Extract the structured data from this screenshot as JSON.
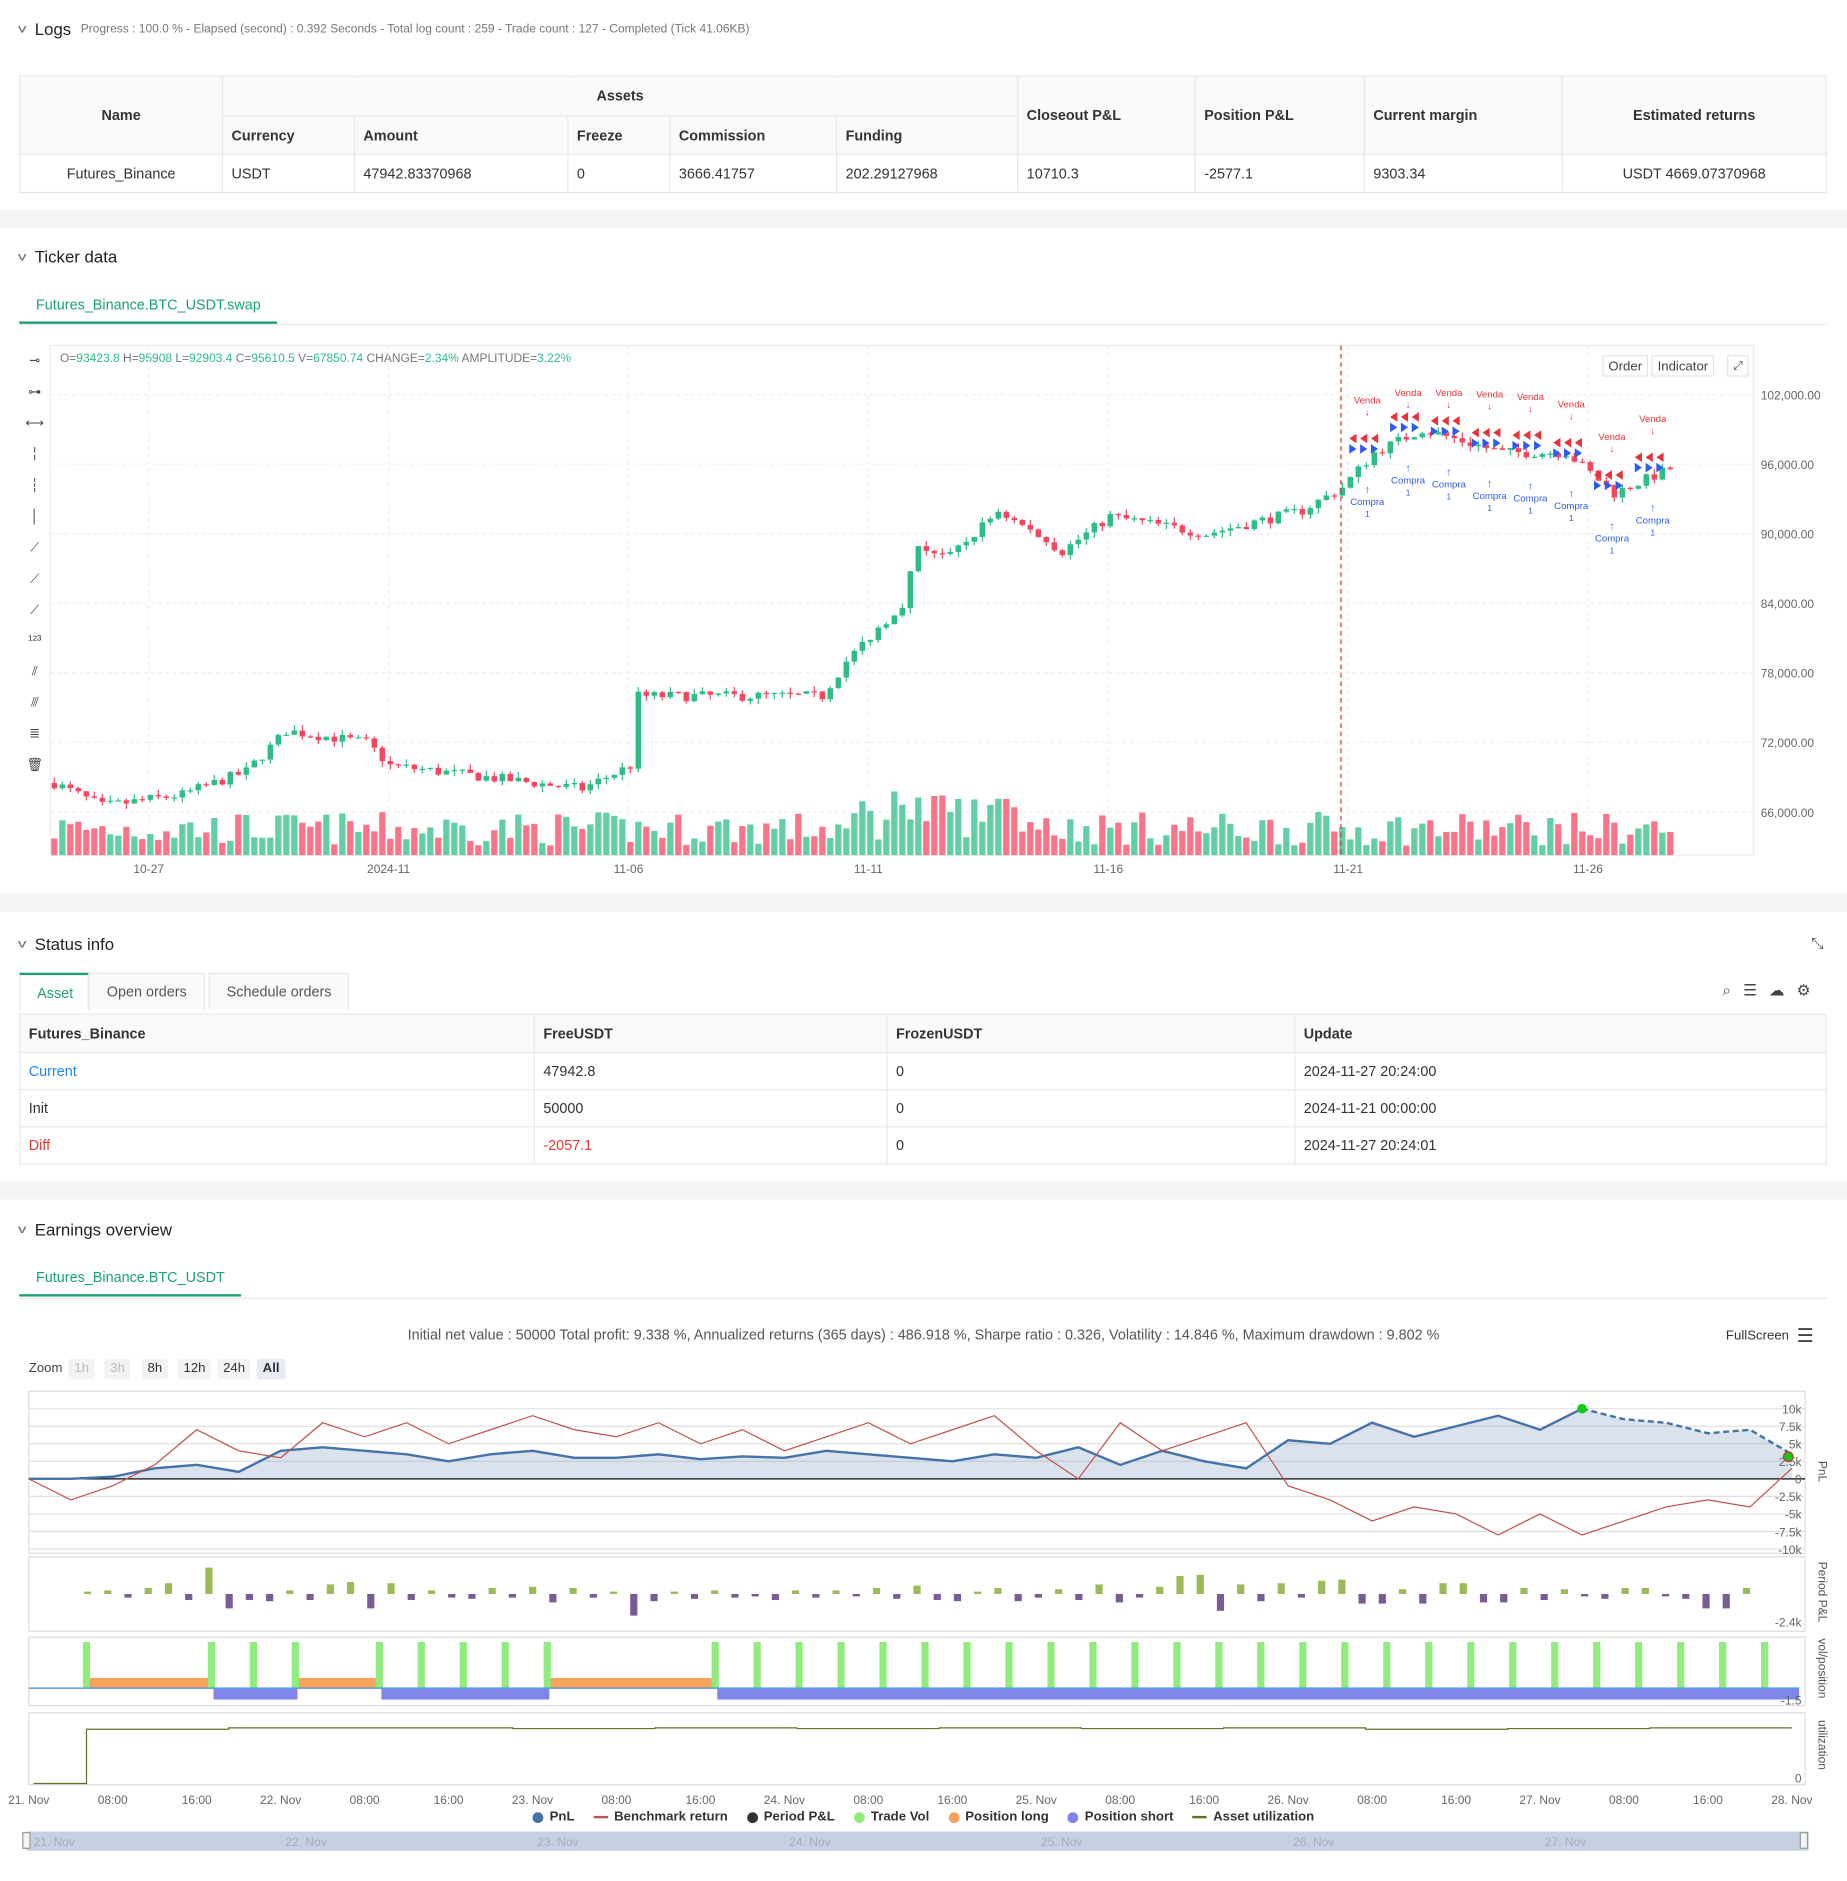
{
  "logs": {
    "title": "Logs",
    "summary": "Progress : 100.0 % - Elapsed (second) : 0.392  Seconds - Total log count : 259 - Trade count : 127 - Completed (Tick 41.06KB)",
    "headers": {
      "name": "Name",
      "assets": "Assets",
      "currency": "Currency",
      "amount": "Amount",
      "freeze": "Freeze",
      "commission": "Commission",
      "funding": "Funding",
      "closeout": "Closeout P&L",
      "position": "Position P&L",
      "margin": "Current margin",
      "returns": "Estimated returns"
    },
    "row": {
      "name": "Futures_Binance",
      "currency": "USDT",
      "amount": "47942.83370968",
      "freeze": "0",
      "commission": "3666.41757",
      "funding": "202.29127968",
      "closeout": "10710.3",
      "position": "-2577.1",
      "margin": "9303.34",
      "returns": "USDT 4669.07370968"
    }
  },
  "ticker": {
    "title": "Ticker data",
    "tab": "Futures_Binance.BTC_USDT.swap",
    "ohlc": {
      "o_label": "O=",
      "o": "93423.8",
      "h_label": " H=",
      "h": "95908",
      "l_label": " L=",
      "l": "92903.4",
      "c_label": " C=",
      "c": "95610.5",
      "v_label": " V=",
      "v": "67850.74",
      "chg_label": " CHANGE=",
      "chg": "2.34%",
      "amp_label": " AMPLITUDE=",
      "amp": "3.22%"
    },
    "order_btn": "Order",
    "indicator_btn": "Indicator",
    "buy_label": "Compra",
    "sell_label": "Venda",
    "qty_label": "1"
  },
  "status": {
    "title": "Status info",
    "tabs": [
      "Asset",
      "Open orders",
      "Schedule orders"
    ],
    "headers": [
      "Futures_Binance",
      "FreeUSDT",
      "FrozenUSDT",
      "Update"
    ],
    "rows": [
      [
        "Current",
        "47942.8",
        "0",
        "2024-11-27 20:24:00"
      ],
      [
        "Init",
        "50000",
        "0",
        "2024-11-21 00:00:00"
      ],
      [
        "Diff",
        "-2057.1",
        "0",
        "2024-11-27 20:24:01"
      ]
    ]
  },
  "earnings": {
    "title": "Earnings overview",
    "tab": "Futures_Binance.BTC_USDT",
    "summary": "Initial net value : 50000 Total profit: 9.338 %, Annualized returns (365 days) : 486.918 %, Sharpe ratio : 0.326, Volatility : 14.846 %, Maximum drawdown : 9.802 %",
    "fullscreen": "FullScreen",
    "zoom_label": "Zoom",
    "zoom_opts": [
      "1h",
      "3h",
      "8h",
      "12h",
      "24h",
      "All"
    ],
    "axis_titles": [
      "PnL",
      "Period P&L",
      "vol/position",
      "utilization"
    ],
    "legend": [
      "PnL",
      "Benchmark return",
      "Period P&L",
      "Trade Vol",
      "Position long",
      "Position short",
      "Asset utilization"
    ],
    "navigator_labels": [
      "21. Nov",
      "22. Nov",
      "23. Nov",
      "24. Nov",
      "25. Nov",
      "26. Nov",
      "27. Nov"
    ]
  },
  "colors": {
    "up": "#2ebd85",
    "down": "#f6465d",
    "accent": "#1aa36f",
    "pnl": "#4572a7",
    "bench": "#c0504d",
    "pos": "#9bbb59",
    "neg": "#7a5c94",
    "vol": "#90ed7d",
    "long": "#f7a35c",
    "short": "#8085e9",
    "util": "#6b6b2a",
    "buy": "#2f5bea",
    "sell": "#e8323c"
  },
  "chart_data": [
    {
      "type": "candlestick",
      "title": "Futures_Binance.BTC_USDT.swap",
      "candle_count": 203,
      "price_anchors": [
        [
          0,
          68500
        ],
        [
          6,
          66500
        ],
        [
          16,
          67500
        ],
        [
          24,
          69500
        ],
        [
          29,
          73000
        ],
        [
          39,
          72000
        ],
        [
          42,
          70000
        ],
        [
          54,
          69000
        ],
        [
          66,
          68000
        ],
        [
          72,
          70000
        ],
        [
          73,
          76000
        ],
        [
          78,
          76000
        ],
        [
          96,
          76000
        ],
        [
          99,
          79000
        ],
        [
          106,
          84000
        ],
        [
          108,
          89000
        ],
        [
          112,
          88000
        ],
        [
          118,
          92000
        ],
        [
          126,
          88500
        ],
        [
          132,
          91500
        ],
        [
          144,
          90000
        ],
        [
          156,
          92000
        ],
        [
          161,
          94000
        ],
        [
          165,
          97000
        ],
        [
          171,
          99000
        ],
        [
          181,
          97000
        ],
        [
          189,
          97000
        ],
        [
          195,
          93500
        ],
        [
          202,
          95610
        ]
      ],
      "y_ticks": [
        66000,
        72000,
        78000,
        84000,
        90000,
        96000,
        102000
      ],
      "y_tick_labels": [
        "66,000.00",
        "72,000.00",
        "78,000.00",
        "84,000.00",
        "90,000.00",
        "96,000.00",
        "102,000.00"
      ],
      "x_tick_labels": [
        "10-27",
        "2024-11",
        "11-06",
        "11-11",
        "11-16",
        "11-21",
        "11-26"
      ]
    },
    {
      "type": "line",
      "title": "PnL",
      "x_step_hours": 4,
      "pnl_k": [
        0,
        0,
        0.3,
        1.5,
        2,
        1,
        4,
        4.5,
        4,
        3.5,
        2.5,
        3.5,
        4,
        3,
        3,
        3.5,
        2.8,
        3.2,
        3,
        4,
        3.5,
        3,
        2.5,
        3.5,
        3,
        4.5,
        2,
        4,
        2.5,
        1.5,
        5.5,
        5,
        8,
        6,
        7.5,
        9,
        7,
        10,
        8.5,
        8,
        6.5,
        7,
        3.5
      ],
      "dashed_from_index": 37,
      "benchmark_k": [
        0,
        -3,
        -1,
        2,
        7,
        4,
        3,
        8,
        6,
        8,
        5,
        7,
        9,
        7,
        6,
        8,
        5,
        7,
        4,
        6,
        8,
        5,
        7,
        9,
        4,
        0,
        8,
        4,
        6,
        8,
        -1,
        -3,
        -6,
        -4,
        -5,
        -8,
        -5,
        -8,
        -6,
        -4,
        -3,
        -4,
        1.5
      ],
      "y_ticks": [
        "10k",
        "7.5k",
        "5k",
        "2.5k",
        "0",
        "-2.5k",
        "-5k",
        "-7.5k",
        "-10k"
      ],
      "ylim": [
        -10,
        10
      ]
    },
    {
      "type": "bar",
      "title": "Period P&L",
      "values_k": [
        0.2,
        0.3,
        -0.3,
        0.5,
        0.9,
        -0.5,
        2.2,
        -1.2,
        -0.5,
        -0.6,
        0.3,
        -0.5,
        0.8,
        1,
        -1.2,
        0.9,
        -0.5,
        0.3,
        -0.3,
        -0.4,
        0.5,
        -0.3,
        0.6,
        -0.7,
        0.5,
        -0.3,
        0.2,
        -1.8,
        -0.6,
        0.2,
        -0.4,
        0.3,
        -0.3,
        -0.2,
        -0.5,
        0.3,
        -0.3,
        0.3,
        -0.2,
        0.5,
        -0.4,
        0.7,
        -0.5,
        -0.6,
        0.2,
        0.5,
        -0.6,
        -0.3,
        0.4,
        -0.5,
        0.8,
        -0.7,
        -0.3,
        0.6,
        1.5,
        1.6,
        -1.4,
        0.8,
        -0.6,
        0.9,
        -0.3,
        1.1,
        1.2,
        -0.8,
        -0.8,
        0.4,
        -0.8,
        0.9,
        0.9,
        -0.7,
        -0.7,
        0.5,
        -0.5,
        0.4,
        -0.2,
        -0.4,
        0.5,
        0.5,
        -0.2,
        -0.4,
        -1.2,
        -1.2,
        0.5
      ],
      "ymin_label": "-2.4k"
    },
    {
      "type": "bar",
      "title": "vol/position",
      "trade_hours": [
        5.5,
        17.4,
        21.4,
        25.4,
        33.4,
        37.4,
        41.4,
        45.4,
        49.4,
        65.4,
        69.4,
        73.4,
        77.4,
        81.4,
        85.4,
        89.4,
        93.4,
        97.4,
        101.4,
        105.4,
        109.4,
        113.4,
        117.4,
        121.4,
        125.4,
        129.4,
        133.4,
        137.4,
        141.4,
        145.4,
        149.4,
        153.4,
        157.4,
        161.4,
        165.4
      ],
      "long_hours": [
        [
          5.3,
          17.6
        ],
        [
          25.6,
          33.6
        ],
        [
          49.6,
          65.6
        ]
      ],
      "short_hours": [
        [
          17.6,
          25.6
        ],
        [
          33.6,
          49.6
        ],
        [
          65.6,
          168.9
        ]
      ],
      "ymin_label": "-1.5"
    },
    {
      "type": "area",
      "title": "utilization",
      "start_hour": 5.5,
      "levels": [
        0.78,
        0.8,
        0.8,
        0.79,
        0.8,
        0.79,
        0.8,
        0.79,
        0.8,
        0.78,
        0.79,
        0.8
      ],
      "ymin_label": "0",
      "x_tick_labels": [
        "21. Nov",
        "08:00",
        "16:00",
        "22. Nov",
        "08:00",
        "16:00",
        "23. Nov",
        "08:00",
        "16:00",
        "24. Nov",
        "08:00",
        "16:00",
        "25. Nov",
        "08:00",
        "16:00",
        "26. Nov",
        "08:00",
        "16:00",
        "27. Nov",
        "08:00",
        "16:00",
        "28. Nov"
      ]
    }
  ]
}
